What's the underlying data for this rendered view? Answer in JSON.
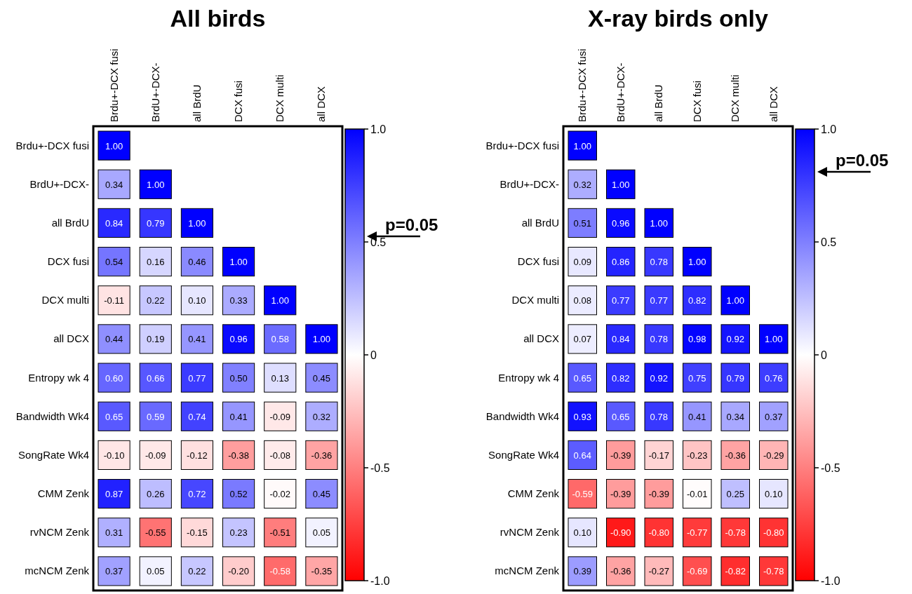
{
  "chart_data": [
    {
      "type": "heatmap",
      "title": "All birds",
      "categories": [
        "Brdu+-DCX fusi",
        "BrdU+-DCX-",
        "all BrdU",
        "DCX fusi",
        "DCX multi",
        "all DCX"
      ],
      "y_categories": [
        "Brdu+-DCX fusi",
        "BrdU+-DCX-",
        "all BrdU",
        "DCX fusi",
        "DCX multi",
        "all DCX",
        "Entropy wk 4",
        "Bandwidth Wk4",
        "SongRate Wk4",
        "CMM Zenk",
        "rvNCM Zenk",
        "mcNCM Zenk"
      ],
      "cells": [
        [
          1.0,
          null,
          null,
          null,
          null,
          null
        ],
        [
          0.34,
          1.0,
          null,
          null,
          null,
          null
        ],
        [
          0.84,
          0.79,
          1.0,
          null,
          null,
          null
        ],
        [
          0.54,
          0.16,
          0.46,
          1.0,
          null,
          null
        ],
        [
          -0.11,
          0.22,
          0.1,
          0.33,
          1.0,
          null
        ],
        [
          0.44,
          0.19,
          0.41,
          0.96,
          0.58,
          1.0
        ],
        [
          0.6,
          0.66,
          0.77,
          0.5,
          0.13,
          0.45
        ],
        [
          0.65,
          0.59,
          0.74,
          0.41,
          -0.09,
          0.32
        ],
        [
          -0.1,
          -0.09,
          -0.12,
          -0.38,
          -0.08,
          -0.36
        ],
        [
          0.87,
          0.26,
          0.72,
          0.52,
          -0.02,
          0.45
        ],
        [
          0.31,
          -0.55,
          -0.15,
          0.23,
          -0.51,
          0.05
        ],
        [
          0.37,
          0.05,
          0.22,
          -0.2,
          -0.58,
          -0.35
        ]
      ],
      "cell_labels": [
        [
          "1.00",
          null,
          null,
          null,
          null,
          null
        ],
        [
          "0.34",
          "1.00",
          null,
          null,
          null,
          null
        ],
        [
          "0.84",
          "0.79",
          "1.00",
          null,
          null,
          null
        ],
        [
          "0.54",
          "0.16",
          "0.46",
          "1.00",
          null,
          null
        ],
        [
          "-0.11",
          "0.22",
          "0.10",
          "0.33",
          "1.00",
          null
        ],
        [
          "0.44",
          "0.19",
          "0.41",
          "0.96",
          "0.58",
          "1.00"
        ],
        [
          "0.60",
          "0.66",
          "0.77",
          "0.50",
          "0.13",
          "0.45"
        ],
        [
          "0.65",
          "0.59",
          "0.74",
          "0.41",
          "-0.09",
          "0.32"
        ],
        [
          "-0.10",
          "-0.09",
          "-0.12",
          "-0.38",
          "-0.08",
          "-0.36"
        ],
        [
          "0.87",
          "0.26",
          "0.72",
          "0.52",
          "-0.02",
          "0.45"
        ],
        [
          "0.31",
          "-0.55",
          "-0.15",
          "0.23",
          "-0.51",
          "0.05"
        ],
        [
          "0.37",
          "0.05",
          "0.22",
          "-0.20",
          "-0.58",
          "-0.35"
        ]
      ],
      "clim": [
        -1,
        1
      ],
      "cticks": [
        {
          "value": 1,
          "label": "1.0"
        },
        {
          "value": 0.5,
          "label": "0.5"
        },
        0,
        {
          "value": -0.5,
          "label": "-0.5"
        },
        {
          "value": -1,
          "label": "-1.0"
        }
      ],
      "annotations": [
        "p=0.05"
      ]
    },
    {
      "type": "heatmap",
      "title": "X-ray birds only",
      "categories": [
        "Brdu+-DCX fusi",
        "BrdU+-DCX-",
        "all BrdU",
        "DCX fusi",
        "DCX multi",
        "all DCX"
      ],
      "y_categories": [
        "Brdu+-DCX fusi",
        "BrdU+-DCX-",
        "all BrdU",
        "DCX fusi",
        "DCX multi",
        "all DCX",
        "Entropy wk 4",
        "Bandwidth Wk4",
        "SongRate Wk4",
        "CMM Zenk",
        "rvNCM Zenk",
        "mcNCM Zenk"
      ],
      "cells": [
        [
          1.0,
          null,
          null,
          null,
          null,
          null
        ],
        [
          0.32,
          1.0,
          null,
          null,
          null,
          null
        ],
        [
          0.51,
          0.96,
          1.0,
          null,
          null,
          null
        ],
        [
          0.09,
          0.86,
          0.78,
          1.0,
          null,
          null
        ],
        [
          0.08,
          0.77,
          0.77,
          0.82,
          1.0,
          null
        ],
        [
          0.07,
          0.84,
          0.78,
          0.98,
          0.92,
          1.0
        ],
        [
          0.65,
          0.82,
          0.92,
          0.75,
          0.79,
          0.76
        ],
        [
          0.93,
          0.65,
          0.78,
          0.41,
          0.34,
          0.37
        ],
        [
          0.64,
          -0.39,
          -0.17,
          -0.23,
          -0.36,
          -0.29
        ],
        [
          -0.59,
          -0.39,
          -0.39,
          -0.01,
          0.25,
          0.1
        ],
        [
          0.1,
          -0.9,
          -0.8,
          -0.77,
          -0.78,
          -0.8
        ],
        [
          0.39,
          -0.36,
          -0.27,
          -0.69,
          -0.82,
          -0.78
        ]
      ],
      "cell_labels": [
        [
          "1.00",
          null,
          null,
          null,
          null,
          null
        ],
        [
          "0.32",
          "1.00",
          null,
          null,
          null,
          null
        ],
        [
          "0.51",
          "0.96",
          "1.00",
          null,
          null,
          null
        ],
        [
          "0.09",
          "0.86",
          "0.78",
          "1.00",
          null,
          null
        ],
        [
          "0.08",
          "0.77",
          "0.77",
          "0.82",
          "1.00",
          null
        ],
        [
          "0.07",
          "0.84",
          "0.78",
          "0.98",
          "0.92",
          "1.00"
        ],
        [
          "0.65",
          "0.82",
          "0.92",
          "0.75",
          "0.79",
          "0.76"
        ],
        [
          "0.93",
          "0.65",
          "0.78",
          "0.41",
          "0.34",
          "0.37"
        ],
        [
          "0.64",
          "-0.39",
          "-0.17",
          "-0.23",
          "-0.36",
          "-0.29"
        ],
        [
          "-0.59",
          "-0.39",
          "-0.39",
          "-0.01",
          "0.25",
          "0.10"
        ],
        [
          "0.10",
          "-0.90",
          "-0.80",
          "-0.77",
          "-0.78",
          "-0.80"
        ],
        [
          "0.39",
          "-0.36",
          "-0.27",
          "-0.69",
          "-0.82",
          "-0.78"
        ]
      ],
      "clim": [
        -1,
        1
      ],
      "cticks": [
        {
          "value": 1,
          "label": "1.0"
        },
        {
          "value": 0.5,
          "label": "0.5"
        },
        0,
        {
          "value": -0.5,
          "label": "-0.5"
        },
        {
          "value": -1,
          "label": "-1.0"
        }
      ],
      "annotations": [
        "p=0.05"
      ]
    }
  ]
}
